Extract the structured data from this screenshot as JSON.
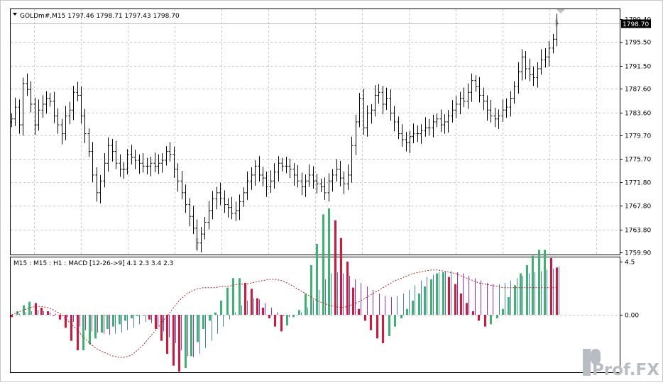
{
  "window": {
    "symbol_header": "GOLDm#,M15  1797.46 1798.71 1797.43 1798.70",
    "current_price_label": "1798.70"
  },
  "watermark": "Prof.FX",
  "chart_data": [
    {
      "type": "bar",
      "kind": "ohlc",
      "symbol": "GOLDm#",
      "timeframe": "M15",
      "last_quote": {
        "open": 1797.46,
        "high": 1798.71,
        "low": 1797.43,
        "close": 1798.7
      },
      "y_ticks": [
        "1799.40",
        "1795.50",
        "1791.50",
        "1787.60",
        "1783.60",
        "1779.70",
        "1775.70",
        "1771.80",
        "1767.80",
        "1763.80",
        "1759.90"
      ],
      "ylim": [
        1759.9,
        1799.4
      ],
      "grid": true,
      "bar_color": "#000000",
      "highlight_color": "#000000",
      "closes": [
        1782.5,
        1784.5,
        1781.5,
        1788.5,
        1787.5,
        1785,
        1781.5,
        1784,
        1785,
        1786,
        1785.5,
        1783,
        1781.5,
        1780,
        1783,
        1784,
        1787,
        1786.5,
        1783,
        1780,
        1777,
        1773,
        1770,
        1772,
        1775,
        1778,
        1777,
        1775,
        1774,
        1774,
        1776.5,
        1776,
        1775.5,
        1775,
        1774.5,
        1774.5,
        1775,
        1774.5,
        1775,
        1775.5,
        1777,
        1776.5,
        1774,
        1772,
        1770,
        1768,
        1766,
        1764,
        1761.5,
        1763,
        1765,
        1767,
        1769,
        1770,
        1769,
        1768,
        1767.5,
        1766.5,
        1767,
        1768.5,
        1770,
        1772,
        1773,
        1774.5,
        1773,
        1772.5,
        1771,
        1772,
        1773.5,
        1775,
        1774.5,
        1774.5,
        1774,
        1773,
        1772,
        1771,
        1772,
        1773,
        1772,
        1771.5,
        1771,
        1770,
        1772,
        1773,
        1774,
        1772.5,
        1771.5,
        1773,
        1778,
        1782,
        1786,
        1781,
        1783.5,
        1784,
        1786.5,
        1787,
        1785,
        1786,
        1783.5,
        1782,
        1780,
        1779,
        1778.5,
        1779.5,
        1780,
        1780,
        1780.5,
        1781,
        1781,
        1782,
        1782.5,
        1781.5,
        1782,
        1783,
        1784,
        1785,
        1786,
        1785.5,
        1787,
        1789,
        1788,
        1786.5,
        1785.5,
        1784,
        1783,
        1782.5,
        1783,
        1784,
        1784.5,
        1786,
        1788,
        1790.5,
        1793,
        1791,
        1790,
        1789.5,
        1791,
        1792.5,
        1793,
        1794.5,
        1796,
        1798.7
      ],
      "highlights": [
        {
          "value": 1798.7,
          "band": [
            1798.2,
            1799.4
          ]
        },
        {
          "value": 1761.5,
          "band": [
            1760.3,
            1762.3
          ]
        }
      ]
    },
    {
      "type": "bar",
      "title": "M15 : M15 : H1 :  MACD [12-26->9] 4.1 2.3 3.4 2.3",
      "y_ticks": [
        "4.5",
        "0.00"
      ],
      "ylim": [
        -4.5,
        4.5
      ],
      "grid": true,
      "colors": {
        "up": "#3cb371",
        "down": "#dc143c",
        "line_up": "#4682b4",
        "line_down": "#9932cc",
        "signal": "#b22222"
      },
      "hist": [
        -0.2,
        0.3,
        0.8,
        1.1,
        1.0,
        0.6,
        0.3,
        0.0,
        -0.4,
        -1.1,
        -2.2,
        -3.0,
        -3.0,
        -2.5,
        -2.0,
        -1.5,
        -1.2,
        -1.0,
        -0.8,
        -0.5,
        -0.3,
        -0.1,
        0.0,
        -0.4,
        -1.2,
        -2.2,
        -3.3,
        -4.3,
        -4.8,
        -4.5,
        -3.5,
        -2.3,
        -1.2,
        -0.5,
        0.2,
        1.2,
        2.3,
        3.1,
        3.1,
        2.7,
        2.2,
        1.4,
        0.6,
        -0.3,
        -1.0,
        -1.4,
        -0.9,
        -0.2,
        0.4,
        1.8,
        4.2,
        6.0,
        8.5,
        9.0,
        8.0,
        6.5,
        4.5,
        2.3,
        0.5,
        -0.5,
        -1.3,
        -2.0,
        -2.4,
        -1.8,
        -1.0,
        -0.3,
        0.5,
        1.2,
        1.8,
        2.4,
        3.0,
        3.5,
        3.6,
        3.2,
        2.6,
        1.8,
        1.0,
        0.3,
        -0.5,
        -1.0,
        -0.8,
        -0.3,
        0.5,
        1.5,
        2.5,
        3.5,
        4.2,
        5.0,
        5.5,
        5.5,
        4.8,
        4.0
      ],
      "macd": [
        0.0,
        0.1,
        0.2,
        0.3,
        0.4,
        0.3,
        0.2,
        0.1,
        0.0,
        -0.2,
        -0.6,
        -1.0,
        -1.3,
        -1.4,
        -1.5,
        -1.6,
        -1.7,
        -1.6,
        -1.5,
        -1.3,
        -1.1,
        -0.8,
        -0.6,
        -0.7,
        -1.0,
        -1.4,
        -1.9,
        -2.4,
        -3.0,
        -3.5,
        -3.6,
        -3.3,
        -2.8,
        -2.2,
        -1.6,
        -1.0,
        -0.4,
        0.2,
        0.8,
        1.2,
        1.4,
        1.3,
        1.0,
        0.6,
        0.2,
        -0.1,
        -0.2,
        0.0,
        0.2,
        0.6,
        1.3,
        2.1,
        3.0,
        3.5,
        3.6,
        3.5,
        3.3,
        3.0,
        2.7,
        2.4,
        2.1,
        1.8,
        1.6,
        1.5,
        1.6,
        1.8,
        2.1,
        2.5,
        2.9,
        3.2,
        3.4,
        3.6,
        3.7,
        3.7,
        3.6,
        3.5,
        3.3,
        3.1,
        2.9,
        2.7,
        2.6,
        2.6,
        2.7,
        2.9,
        3.1,
        3.3,
        3.5,
        3.6,
        3.7,
        3.8,
        3.9,
        4.1
      ],
      "signal": [
        0.0,
        0.2,
        0.4,
        0.6,
        0.7,
        0.7,
        0.6,
        0.4,
        0.1,
        -0.3,
        -0.8,
        -1.3,
        -1.9,
        -2.4,
        -2.8,
        -3.1,
        -3.3,
        -3.5,
        -3.6,
        -3.6,
        -3.4,
        -3.0,
        -2.5,
        -1.9,
        -1.3,
        -0.7,
        -0.1,
        0.6,
        1.2,
        1.7,
        2.0,
        2.2,
        2.3,
        2.3,
        2.3,
        2.4,
        2.4,
        2.5,
        2.6,
        2.6,
        2.7,
        2.8,
        2.9,
        3.0,
        3.0,
        2.9,
        2.7,
        2.4,
        2.1,
        1.8,
        1.5,
        1.2,
        1.0,
        0.8,
        0.7,
        0.6,
        0.7,
        0.9,
        1.1,
        1.4,
        1.7,
        2.0,
        2.3,
        2.6,
        2.9,
        3.1,
        3.3,
        3.5,
        3.6,
        3.7,
        3.8,
        3.8,
        3.7,
        3.6,
        3.5,
        3.3,
        3.1,
        2.9,
        2.7,
        2.6,
        2.5,
        2.4,
        2.3,
        2.3,
        2.3,
        2.3,
        2.3,
        2.3,
        2.3,
        2.3,
        2.3,
        2.3
      ]
    }
  ]
}
